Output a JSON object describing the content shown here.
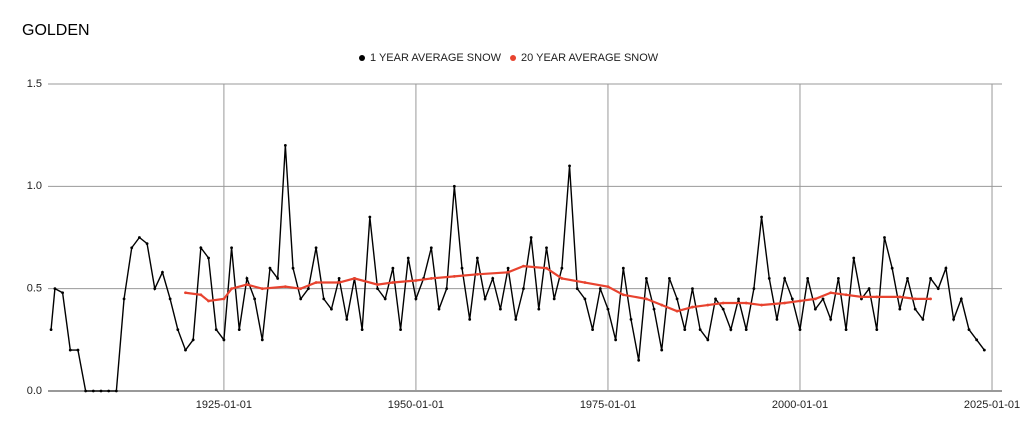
{
  "chart_data": {
    "type": "line",
    "title": "GOLDEN",
    "series": [
      {
        "name": "1 YEAR AVERAGE SNOW",
        "color": "#000000",
        "x": [
          1902.5,
          1903,
          1904,
          1905,
          1906,
          1907,
          1908,
          1909,
          1910,
          1911,
          1912,
          1913,
          1914,
          1915,
          1916,
          1917,
          1918,
          1919,
          1920,
          1921,
          1922,
          1923,
          1924,
          1925,
          1926,
          1927,
          1928,
          1929,
          1930,
          1931,
          1932,
          1933,
          1934,
          1935,
          1936,
          1937,
          1938,
          1939,
          1940,
          1941,
          1942,
          1943,
          1944,
          1945,
          1946,
          1947,
          1948,
          1949,
          1950,
          1951,
          1952,
          1953,
          1954,
          1955,
          1956,
          1957,
          1958,
          1959,
          1960,
          1961,
          1962,
          1963,
          1964,
          1965,
          1966,
          1967,
          1968,
          1969,
          1970,
          1971,
          1972,
          1973,
          1974,
          1975,
          1976,
          1977,
          1978,
          1979,
          1980,
          1981,
          1982,
          1983,
          1984,
          1985,
          1986,
          1987,
          1988,
          1989,
          1990,
          1991,
          1992,
          1993,
          1994,
          1995,
          1996,
          1997,
          1998,
          1999,
          2000,
          2001,
          2002,
          2003,
          2004,
          2005,
          2006,
          2007,
          2008,
          2009,
          2010,
          2011,
          2012,
          2013,
          2014,
          2015,
          2016,
          2017,
          2018,
          2019,
          2020,
          2021,
          2022,
          2023,
          2024
        ],
        "values": [
          0.3,
          0.5,
          0.48,
          0.2,
          0.2,
          0,
          0,
          0,
          0,
          0,
          0.45,
          0.7,
          0.75,
          0.72,
          0.5,
          0.58,
          0.45,
          0.3,
          0.2,
          0.25,
          0.7,
          0.65,
          0.3,
          0.25,
          0.7,
          0.3,
          0.55,
          0.45,
          0.25,
          0.6,
          0.55,
          1.2,
          0.6,
          0.45,
          0.5,
          0.7,
          0.45,
          0.4,
          0.55,
          0.35,
          0.55,
          0.3,
          0.85,
          0.5,
          0.45,
          0.6,
          0.3,
          0.65,
          0.45,
          0.55,
          0.7,
          0.4,
          0.5,
          1.0,
          0.6,
          0.35,
          0.65,
          0.45,
          0.55,
          0.4,
          0.6,
          0.35,
          0.5,
          0.75,
          0.4,
          0.7,
          0.45,
          0.6,
          1.1,
          0.5,
          0.45,
          0.3,
          0.5,
          0.4,
          0.25,
          0.6,
          0.35,
          0.15,
          0.55,
          0.4,
          0.2,
          0.55,
          0.45,
          0.3,
          0.5,
          0.3,
          0.25,
          0.45,
          0.4,
          0.3,
          0.45,
          0.3,
          0.5,
          0.85,
          0.55,
          0.35,
          0.55,
          0.45,
          0.3,
          0.55,
          0.4,
          0.45,
          0.35,
          0.55,
          0.3,
          0.65,
          0.45,
          0.5,
          0.3,
          0.75,
          0.6,
          0.4,
          0.55,
          0.4,
          0.35,
          0.55,
          0.5,
          0.6,
          0.35,
          0.45,
          0.3,
          0.25,
          0.2
        ]
      },
      {
        "name": "20 YEAR AVERAGE SNOW",
        "color": "#e8432f",
        "x": [
          1920,
          1922,
          1923,
          1925,
          1926,
          1928,
          1930,
          1933,
          1935,
          1937,
          1940,
          1942,
          1945,
          1947,
          1950,
          1952,
          1955,
          1958,
          1962,
          1964,
          1967,
          1969,
          1972,
          1975,
          1977,
          1980,
          1982,
          1984,
          1986,
          1988,
          1990,
          1993,
          1995,
          1998,
          2000,
          2002,
          2004,
          2006,
          2008,
          2010,
          2013,
          2015,
          2017
        ],
        "values": [
          0.48,
          0.47,
          0.44,
          0.45,
          0.5,
          0.52,
          0.5,
          0.51,
          0.5,
          0.53,
          0.53,
          0.55,
          0.52,
          0.53,
          0.54,
          0.55,
          0.56,
          0.57,
          0.58,
          0.61,
          0.6,
          0.55,
          0.53,
          0.51,
          0.47,
          0.45,
          0.42,
          0.39,
          0.41,
          0.42,
          0.43,
          0.43,
          0.42,
          0.43,
          0.44,
          0.45,
          0.48,
          0.47,
          0.46,
          0.46,
          0.46,
          0.45,
          0.45
        ]
      }
    ],
    "xlim": [
      1902.1,
      2026.3
    ],
    "xticks": [
      {
        "value": 1925,
        "label": "1925-01-01"
      },
      {
        "value": 1950,
        "label": "1950-01-01"
      },
      {
        "value": 1975,
        "label": "1975-01-01"
      },
      {
        "value": 2000,
        "label": "2000-01-01"
      },
      {
        "value": 2025,
        "label": "2025-01-01"
      }
    ],
    "ylim": [
      0,
      1.5
    ],
    "yticks": [
      {
        "value": 0,
        "label": "0.0"
      },
      0.5,
      {
        "value": 1,
        "label": "1.0"
      },
      1.5
    ],
    "grid": true,
    "legend": "top"
  }
}
